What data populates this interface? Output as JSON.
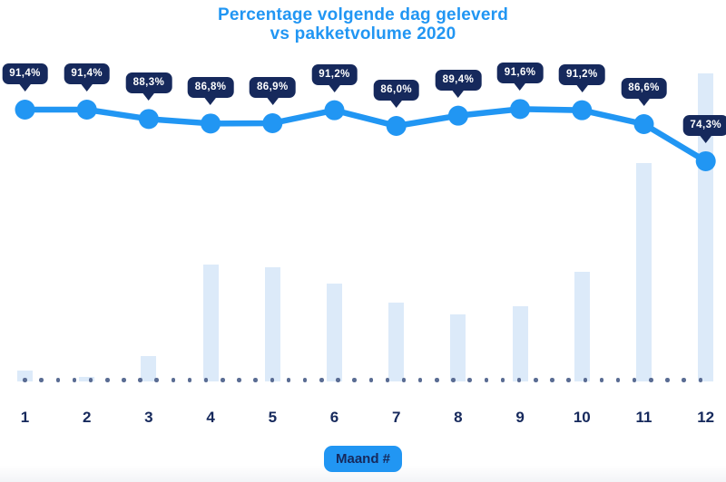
{
  "title": {
    "line1": "Percentage volgende dag geleverd",
    "line2": "vs pakketvolume 2020"
  },
  "x_axis_title": "Maand #",
  "chart_data": {
    "type": "combo",
    "subtypes": [
      "line",
      "bar"
    ],
    "title": "Percentage volgende dag geleverd vs pakketvolume 2020",
    "xlabel": "Maand #",
    "ylabel": "",
    "legend_position": "none",
    "grid": "dotted-baseline-only",
    "categories": [
      "1",
      "2",
      "3",
      "4",
      "5",
      "6",
      "7",
      "8",
      "9",
      "10",
      "11",
      "12"
    ],
    "series": [
      {
        "name": "Percentage volgende dag geleverd",
        "type": "line",
        "values": [
          91.4,
          91.4,
          88.3,
          86.8,
          86.9,
          91.2,
          86.0,
          89.4,
          91.6,
          91.2,
          86.6,
          74.3
        ],
        "point_labels": [
          "91,4%",
          "91,4%",
          "88,3%",
          "86,8%",
          "86,9%",
          "91,2%",
          "86,0%",
          "89,4%",
          "91,6%",
          "91,2%",
          "86,6%",
          "74,3%"
        ]
      },
      {
        "name": "Pakketvolume 2020",
        "type": "bar",
        "values_pct_of_max_volume": [
          3.5,
          1.5,
          8.2,
          37.9,
          37.0,
          31.8,
          25.7,
          21.9,
          24.5,
          35.6,
          70.9,
          100
        ],
        "axis_labeled": false
      }
    ]
  },
  "colors": {
    "accent_blue": "#2196F3",
    "tooltip_navy": "#16295C",
    "bar_light_blue": "#DCEAF9",
    "baseline_dot": "#5A6C93",
    "tooltip_text": "#FFFFFF",
    "background": "#FFFFFF"
  }
}
